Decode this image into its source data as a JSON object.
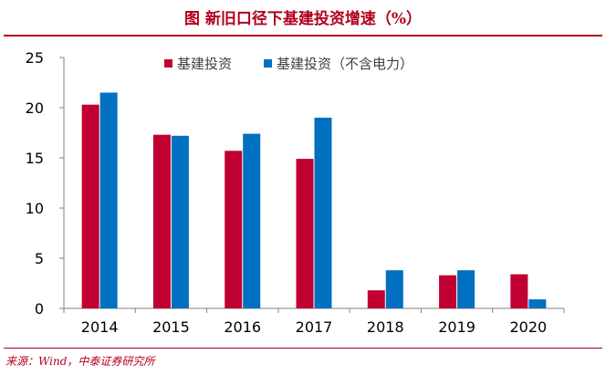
{
  "header": {
    "title": "图 新旧口径下基建投资增速（%）"
  },
  "footer": {
    "source": "来源：Wind，中泰证券研究所"
  },
  "chart_data": {
    "type": "bar",
    "categories": [
      "2014",
      "2015",
      "2016",
      "2017",
      "2018",
      "2019",
      "2020"
    ],
    "series": [
      {
        "name": "基建投资",
        "color": "#c00030",
        "values": [
          20.3,
          17.3,
          15.7,
          14.9,
          1.8,
          3.3,
          3.4
        ]
      },
      {
        "name": "基建投资（不含电力）",
        "color": "#0070c0",
        "values": [
          21.5,
          17.2,
          17.4,
          19.0,
          3.8,
          3.8,
          0.9
        ]
      }
    ],
    "yticks": [
      0,
      5,
      10,
      15,
      20,
      25
    ],
    "ylim": [
      0,
      25
    ],
    "grid": false,
    "legend_position": "top-center"
  }
}
